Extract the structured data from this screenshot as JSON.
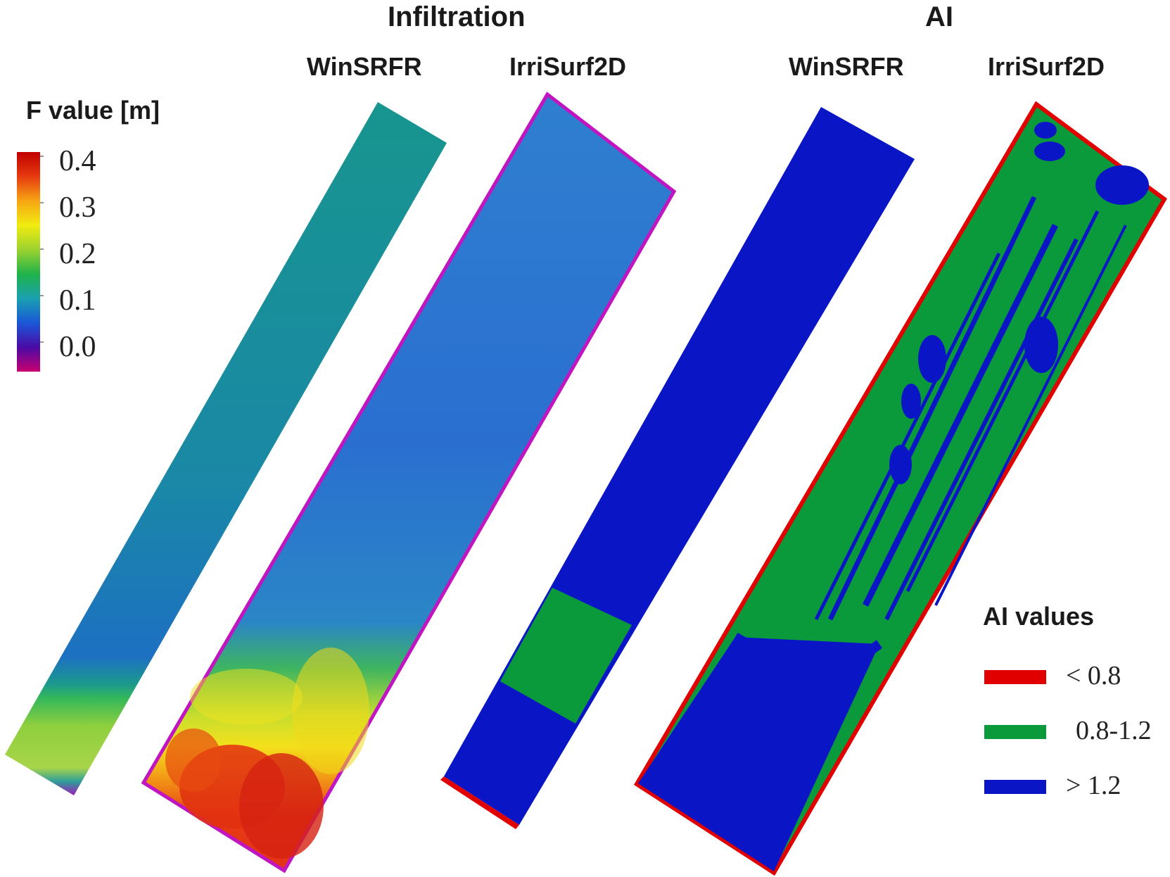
{
  "headings": {
    "infiltration": "Infiltration",
    "ai": "AI",
    "panels": [
      "WinSRFR",
      "IrriSurf2D",
      "WinSRFR",
      "IrriSurf2D"
    ]
  },
  "colorbar": {
    "title": "F value [m]",
    "ticks": [
      "0.4",
      "0.3",
      "0.2",
      "0.1",
      "0.0"
    ],
    "colors": [
      "#c8006e",
      "#4b0aa6",
      "#1a57d8",
      "#1aa0b0",
      "#1fb34a",
      "#9cd22e",
      "#f1ec10",
      "#f7a514",
      "#e63a10",
      "#c00000"
    ]
  },
  "ai_legend": {
    "title": "AI values",
    "items": [
      {
        "label": "< 0.8",
        "color": "#e00000"
      },
      {
        "label": "0.8-1.2",
        "color": "#0a9a3c"
      },
      {
        "label": "> 1.2",
        "color": "#0a16c6"
      }
    ]
  },
  "panel_colors": {
    "winsrfr_inf_main": "#17948f",
    "winsrfr_inf_low": "#1d6fc0",
    "winsrfr_inf_band": "#a8d44a",
    "irrisurf_inf_main": "#2a72cf",
    "irrisurf_inf_hot": "#e73b12",
    "irrisurf_inf_warm": "#f3e01a",
    "edge_magenta": "#c015c0",
    "ai_blue": "#0a16c6",
    "ai_green": "#0a9a3c",
    "ai_red": "#e00000"
  }
}
